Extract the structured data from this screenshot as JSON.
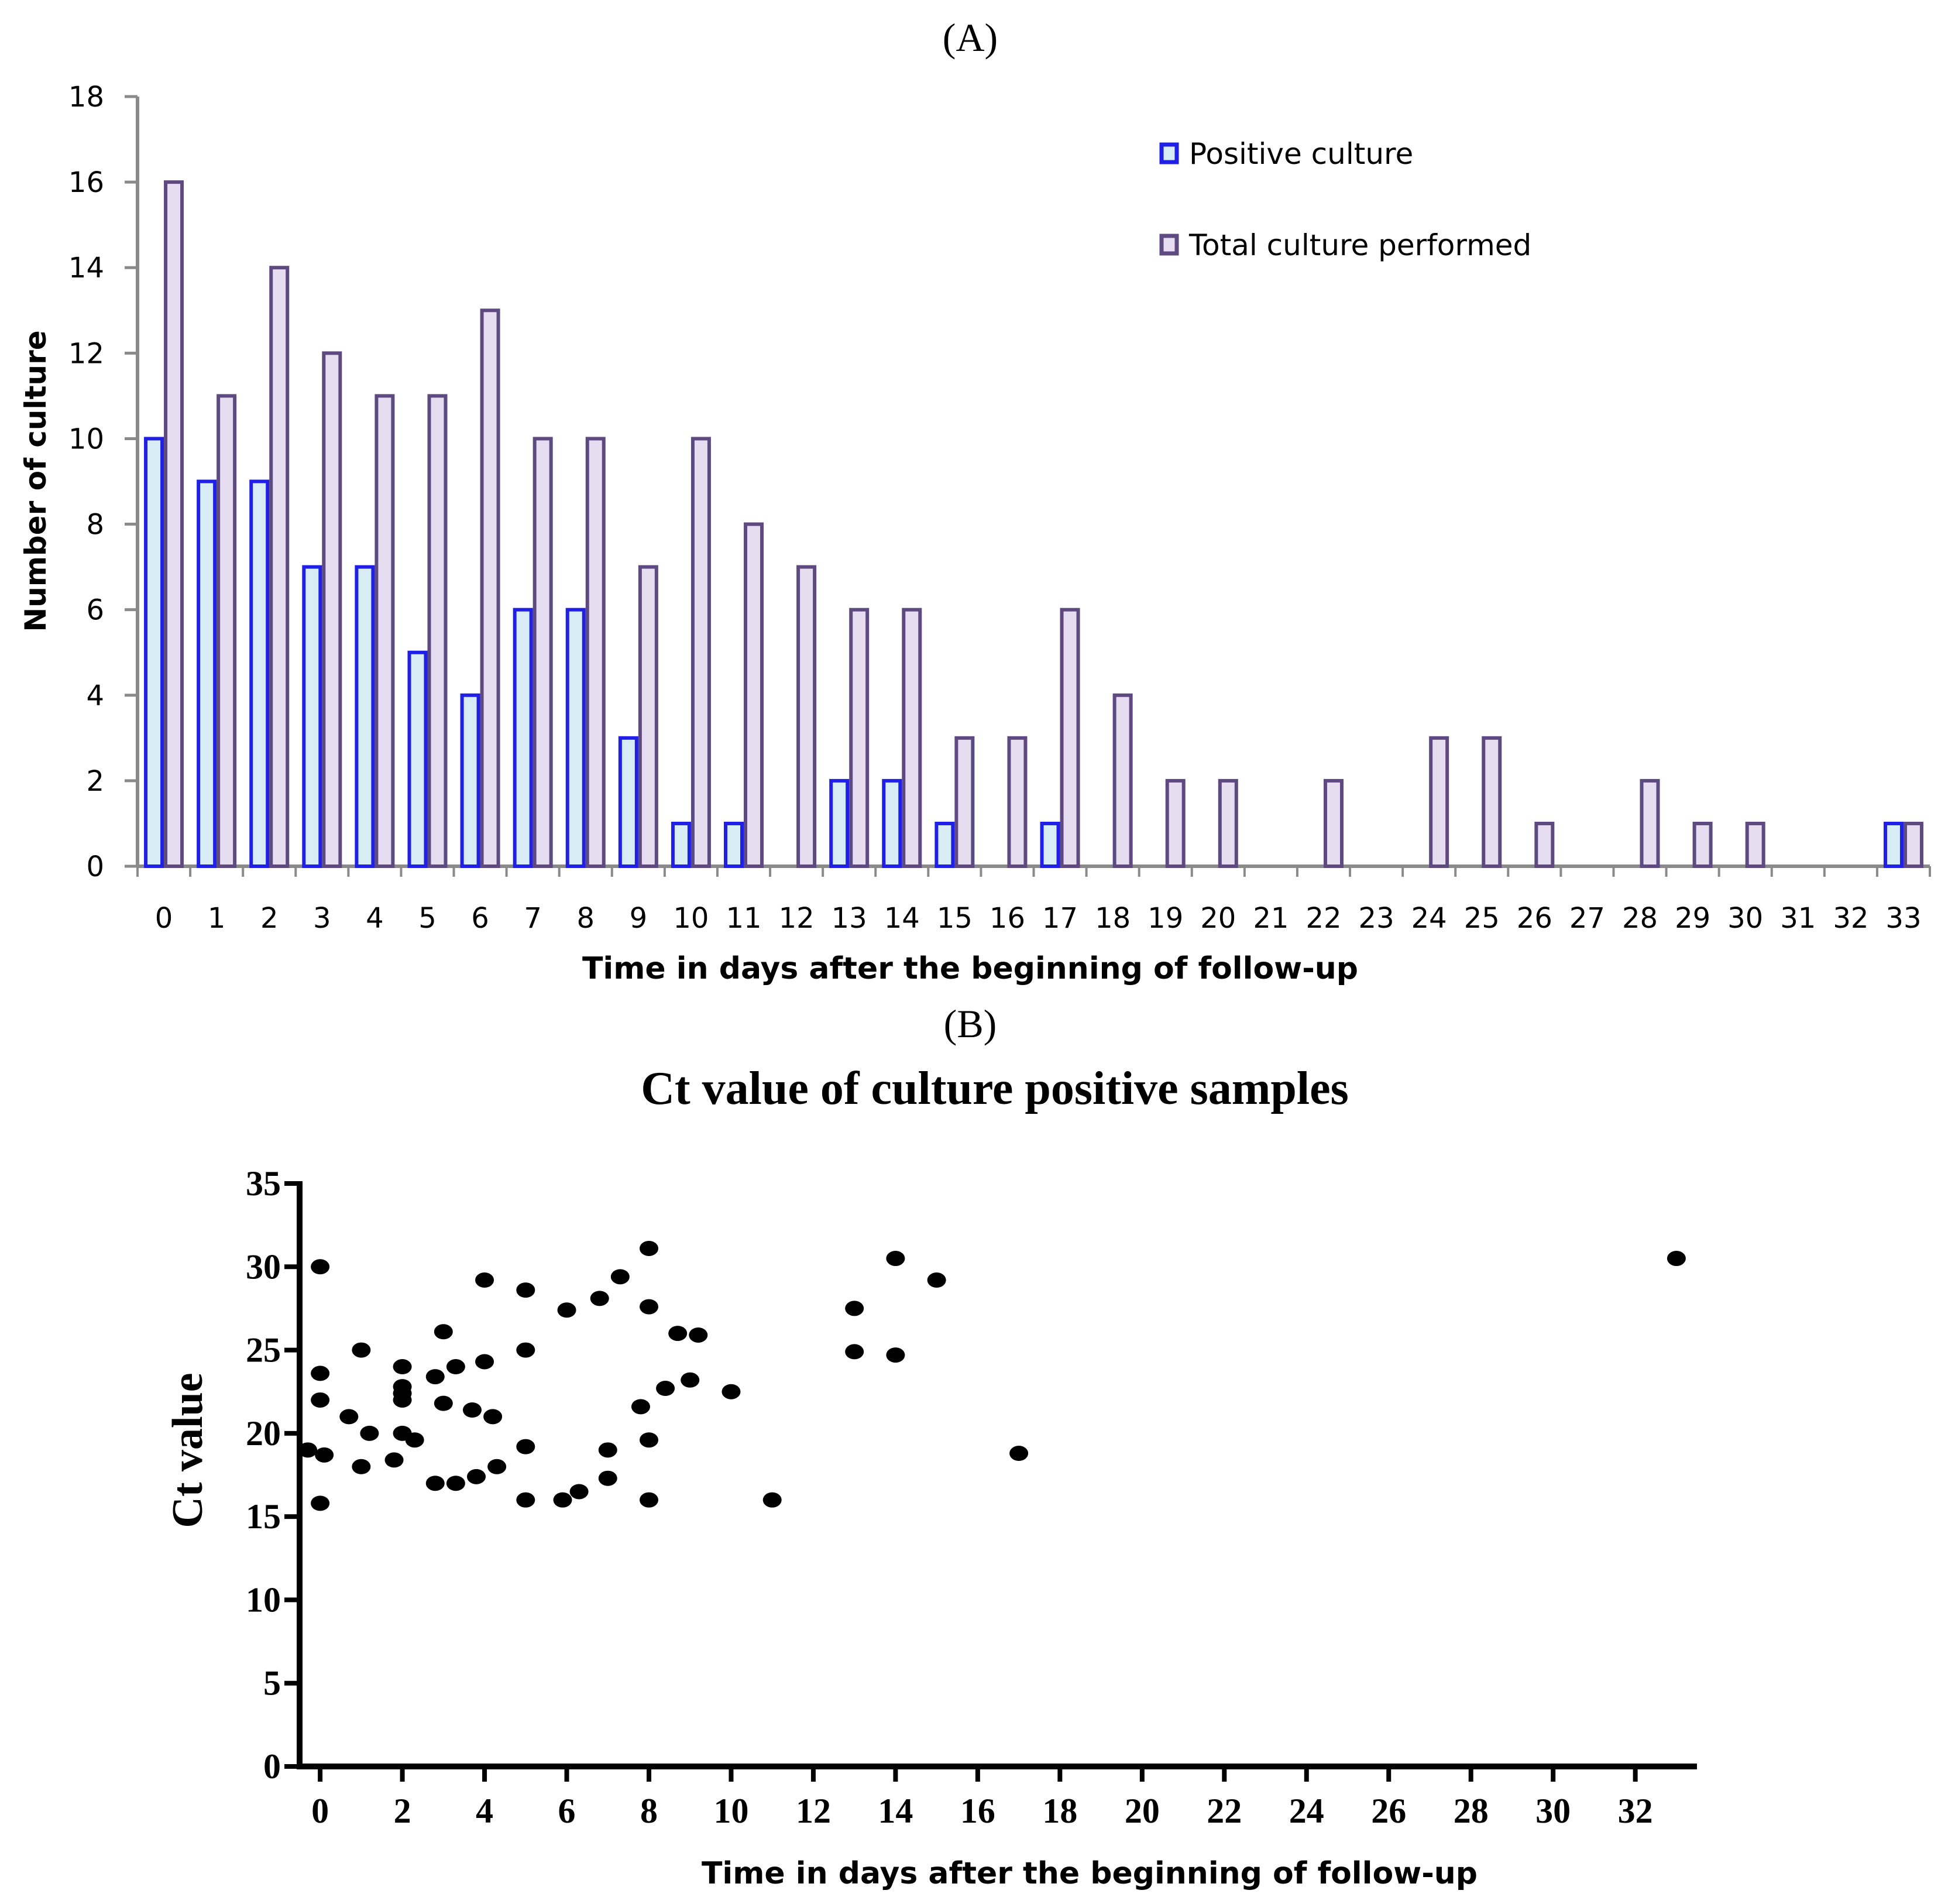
{
  "panelA": {
    "label": "(A)",
    "colors": {
      "axis": "#8a8a8a",
      "pos_stroke": "#1f1fe6",
      "pos_fill": "#d8ecf6",
      "tot_stroke": "#5e4a80",
      "tot_fill": "#e6ddf0"
    },
    "chart_data": {
      "type": "bar",
      "title": "",
      "xlabel": "Time in days after the beginning of follow-up",
      "ylabel": "Number of culture",
      "ylim": [
        0,
        18
      ],
      "yticks": [
        0,
        2,
        4,
        6,
        8,
        10,
        12,
        14,
        16,
        18
      ],
      "categories": [
        "0",
        "1",
        "2",
        "3",
        "4",
        "5",
        "6",
        "7",
        "8",
        "9",
        "10",
        "11",
        "12",
        "13",
        "14",
        "15",
        "16",
        "17",
        "18",
        "19",
        "20",
        "21",
        "22",
        "23",
        "24",
        "25",
        "26",
        "27",
        "28",
        "29",
        "30",
        "31",
        "32",
        "33"
      ],
      "series": [
        {
          "name": "Positive culture",
          "values": [
            10,
            9,
            9,
            7,
            7,
            5,
            4,
            6,
            6,
            3,
            1,
            1,
            0,
            2,
            2,
            1,
            0,
            1,
            0,
            0,
            0,
            0,
            0,
            0,
            0,
            0,
            0,
            0,
            0,
            0,
            0,
            0,
            0,
            1
          ]
        },
        {
          "name": "Total culture performed",
          "values": [
            16,
            11,
            14,
            12,
            11,
            11,
            13,
            10,
            10,
            7,
            10,
            8,
            7,
            6,
            6,
            3,
            3,
            6,
            4,
            2,
            2,
            0,
            2,
            0,
            3,
            3,
            1,
            0,
            2,
            1,
            1,
            0,
            0,
            1
          ]
        }
      ],
      "legend_position": "top-right"
    }
  },
  "panelB": {
    "label": "(B)",
    "colors": {
      "axis": "#000000",
      "point": "#000000"
    },
    "chart_data": {
      "type": "scatter",
      "title": "Ct value of culture positive samples",
      "xlabel": "Time in days after the beginning of follow-up",
      "ylabel": "Ct value",
      "xlim": [
        -0.5,
        33.5
      ],
      "ylim": [
        0,
        35
      ],
      "xticks": [
        0,
        2,
        4,
        6,
        8,
        10,
        12,
        14,
        16,
        18,
        20,
        22,
        24,
        26,
        28,
        30,
        32
      ],
      "yticks": [
        0,
        5,
        10,
        15,
        20,
        25,
        30,
        35
      ],
      "points": [
        [
          -0.3,
          19
        ],
        [
          0,
          30
        ],
        [
          0,
          23.6
        ],
        [
          0,
          22
        ],
        [
          0.1,
          18.7
        ],
        [
          0,
          15.8
        ],
        [
          0.7,
          21
        ],
        [
          1,
          25
        ],
        [
          1,
          18
        ],
        [
          1.2,
          20
        ],
        [
          1.8,
          18.4
        ],
        [
          2,
          24
        ],
        [
          2,
          22.8
        ],
        [
          2,
          22.4
        ],
        [
          2,
          22
        ],
        [
          2,
          20
        ],
        [
          2.3,
          19.6
        ],
        [
          2.8,
          23.4
        ],
        [
          2.8,
          17
        ],
        [
          3,
          26.1
        ],
        [
          3,
          21.8
        ],
        [
          3.3,
          24
        ],
        [
          3.3,
          17
        ],
        [
          3.7,
          21.4
        ],
        [
          3.8,
          17.4
        ],
        [
          4,
          29.2
        ],
        [
          4,
          24.3
        ],
        [
          4.2,
          21
        ],
        [
          4.3,
          18
        ],
        [
          5,
          28.6
        ],
        [
          5,
          25
        ],
        [
          5,
          19.2
        ],
        [
          5,
          16
        ],
        [
          5.9,
          16
        ],
        [
          6,
          27.4
        ],
        [
          6.3,
          16.5
        ],
        [
          6.8,
          28.1
        ],
        [
          7,
          19
        ],
        [
          7,
          17.3
        ],
        [
          7.3,
          29.4
        ],
        [
          7.8,
          21.6
        ],
        [
          8,
          31.1
        ],
        [
          8,
          27.6
        ],
        [
          8,
          19.6
        ],
        [
          8,
          16
        ],
        [
          8.4,
          22.7
        ],
        [
          8.7,
          26
        ],
        [
          9,
          23.2
        ],
        [
          9.2,
          25.9
        ],
        [
          10,
          22.5
        ],
        [
          11,
          16
        ],
        [
          13,
          27.5
        ],
        [
          13,
          24.9
        ],
        [
          14,
          30.5
        ],
        [
          14,
          24.7
        ],
        [
          15,
          29.2
        ],
        [
          17,
          18.8
        ],
        [
          33,
          30.5
        ]
      ]
    }
  }
}
